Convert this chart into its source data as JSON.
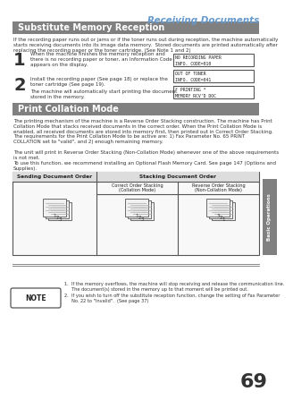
{
  "page_title": "Receiving Documents",
  "section1_title": "Substitute Memory Reception",
  "section1_body": "If the recording paper runs out or jams or if the toner runs out during reception, the machine automatically\nstarts receiving documents into its image data memory.  Stored documents are printed automatically after\nreplacing the recording paper or the toner cartridge. (See Note 1 and 2)",
  "step1_num": "1",
  "step1_text": "When the machine finishes the memory reception and\nthere is no recording paper or toner, an Information Code\nappears on the display.",
  "step2_num": "2",
  "step2_text": "Install the recording paper (See page 18) or replace the\ntoner cartridge (See page 19).",
  "step2_sub": "The machine will automatically start printing the document\nstored in the memory.",
  "lcd1_line1": "NO RECORDING PAPER",
  "lcd1_line2": "INFO. CODE=010",
  "lcd2_line1": "OUT OF TONER",
  "lcd2_line2": "INFO. CODE=041",
  "lcd3_line1": "* PRINTING *",
  "lcd3_line2": "MEMORY RCV'D DOC",
  "section2_title": "Print Collation Mode",
  "section2_body1": "The printing mechanism of the machine is a Reverse Order Stacking construction. The machine has Print\nCollation Mode that stacks received documents in the correct order. When the Print Collation Mode is\nenabled, all received documents are stored into memory first, then printed out in Correct Order Stacking.\nThe requirements for the Print Collation Mode to be active are: 1) Fax Parameter No. 65 PRINT\nCOLLATION set to \"valid\", and 2) enough remaining memory.",
  "section2_body2": "The unit will print in Reverse Order Stacking (Non-Collation Mode) whenever one of the above requirements\nis not met.",
  "section2_body3": "To use this function, we recommend installing an Optional Flash Memory Card. See page 147 (Options and\nSupplies).",
  "table_col1": "Sending Document Order",
  "table_col2": "Stacking Document Order",
  "table_sub_col2a": "Correct Order Stacking\n(Collation Mode)",
  "table_sub_col2b": "Reverse Order Stacking\n(Non-Collation Mode)",
  "note_label": "NOTE",
  "note1": "1.  If the memory overflows, the machine will stop receiving and release the communication line.\n     The document(s) stored in the memory up to that moment will be printed out.",
  "note2": "2.  If you wish to turn off the substitute reception function, change the setting of Fax Parameter\n     No. 22 to \"Invalid\".  (See page 37)",
  "page_number": "69",
  "tab_label": "Basic Operations",
  "bg_color": "#ffffff",
  "section_header_bg": "#808080",
  "section_header_text": "#ffffff",
  "page_title_color": "#6699cc",
  "tab_bg": "#808080",
  "tab_text": "#ffffff",
  "body_text_color": "#333333",
  "lcd_bg": "#ffffff",
  "lcd_border": "#555555",
  "note_box_border": "#555555"
}
